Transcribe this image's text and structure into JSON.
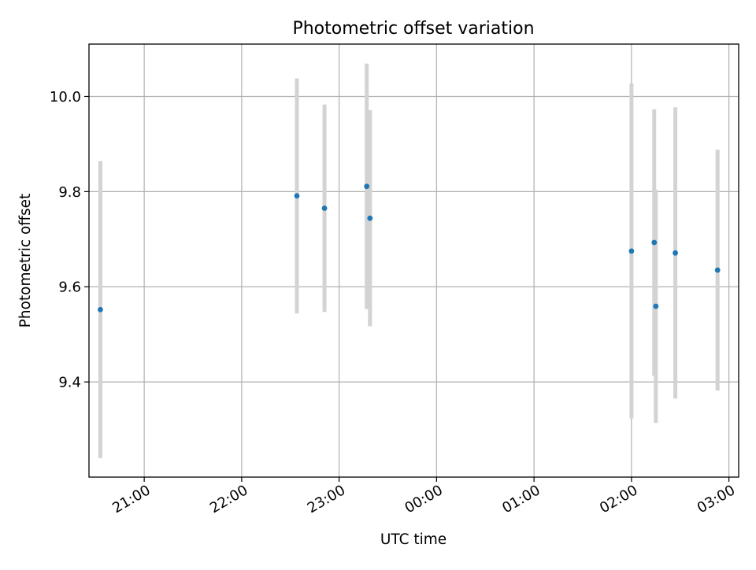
{
  "chart_data": {
    "type": "scatter",
    "title": "Photometric offset variation",
    "xlabel": "UTC time",
    "ylabel": "Photometric offset",
    "x_axis_type": "time",
    "xlim": [
      "20:26",
      "03:06"
    ],
    "ylim": [
      9.2,
      10.11
    ],
    "xticks": [
      "21:00",
      "22:00",
      "23:00",
      "00:00",
      "01:00",
      "02:00",
      "03:00"
    ],
    "yticks": [
      9.4,
      9.6,
      9.8,
      10.0
    ],
    "ytick_labels": [
      "9.4",
      "9.6",
      "9.8",
      "10.0"
    ],
    "grid": true,
    "legend": "none",
    "colors": {
      "marker": "#1f77b4",
      "errorbar": "#d3d3d3",
      "grid": "#b0b0b0",
      "axes": "#000000"
    },
    "points": [
      {
        "x": "20:33",
        "y": 9.552,
        "yerr": 0.312
      },
      {
        "x": "22:34",
        "y": 9.791,
        "yerr": 0.247
      },
      {
        "x": "22:51",
        "y": 9.765,
        "yerr": 0.218
      },
      {
        "x": "23:17",
        "y": 9.811,
        "yerr": 0.258
      },
      {
        "x": "23:19",
        "y": 9.744,
        "yerr": 0.227
      },
      {
        "x": "02:00",
        "y": 9.675,
        "yerr": 0.352
      },
      {
        "x": "02:14",
        "y": 9.693,
        "yerr": 0.28
      },
      {
        "x": "02:15",
        "y": 9.559,
        "yerr": 0.245
      },
      {
        "x": "02:27",
        "y": 9.671,
        "yerr": 0.306
      },
      {
        "x": "02:53",
        "y": 9.635,
        "yerr": 0.253
      }
    ]
  }
}
